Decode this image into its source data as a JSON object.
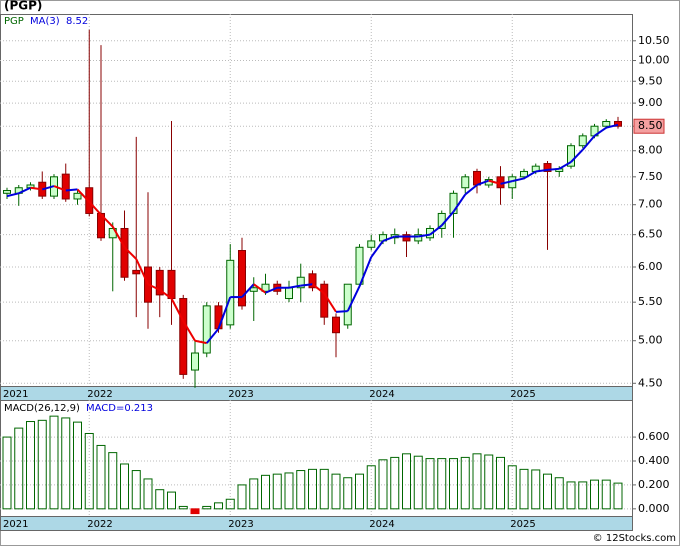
{
  "chart_data": [
    {
      "type": "candlestick",
      "title": "(PGP)",
      "symbol": "PGP",
      "categories": [
        "2021",
        null,
        null,
        null,
        null,
        null,
        null,
        "2022",
        null,
        null,
        null,
        null,
        null,
        null,
        null,
        null,
        null,
        null,
        null,
        "2023",
        null,
        null,
        null,
        null,
        null,
        null,
        null,
        null,
        null,
        null,
        null,
        "2024",
        null,
        null,
        null,
        null,
        null,
        null,
        null,
        null,
        null,
        null,
        null,
        "2025",
        null,
        null,
        null,
        null,
        null,
        null,
        null,
        null,
        null
      ],
      "open": [
        7.2,
        7.2,
        7.3,
        7.4,
        7.15,
        7.55,
        7.1,
        7.3,
        6.85,
        6.45,
        6.6,
        5.95,
        6.0,
        5.95,
        5.95,
        5.55,
        4.65,
        4.85,
        5.45,
        5.2,
        6.25,
        5.65,
        5.65,
        5.75,
        5.55,
        5.7,
        5.9,
        5.75,
        5.3,
        5.2,
        5.75,
        6.3,
        6.4,
        6.45,
        6.5,
        6.4,
        6.45,
        6.6,
        6.85,
        7.3,
        7.6,
        7.35,
        7.5,
        7.3,
        7.5,
        7.6,
        7.75,
        7.6,
        7.7,
        8.1,
        8.3,
        8.5,
        8.6
      ],
      "high": [
        7.3,
        7.35,
        7.4,
        7.6,
        7.55,
        7.75,
        7.25,
        10.79,
        10.39,
        6.7,
        6.9,
        8.28,
        7.22,
        6.0,
        8.61,
        5.6,
        5.0,
        5.5,
        5.5,
        6.35,
        6.45,
        5.85,
        5.9,
        5.8,
        5.8,
        6.05,
        5.95,
        5.8,
        5.35,
        5.75,
        6.35,
        6.5,
        6.55,
        6.6,
        6.55,
        6.6,
        6.65,
        6.9,
        7.25,
        7.55,
        7.65,
        7.5,
        7.7,
        7.55,
        7.65,
        7.75,
        7.8,
        7.7,
        8.15,
        8.35,
        8.55,
        8.65,
        8.7
      ],
      "low": [
        7.1,
        6.98,
        7.25,
        7.1,
        7.1,
        7.05,
        7.0,
        6.8,
        6.4,
        5.65,
        5.8,
        5.3,
        5.15,
        5.3,
        5.2,
        4.55,
        4.45,
        4.8,
        5.1,
        5.15,
        5.4,
        5.25,
        5.6,
        5.6,
        5.5,
        5.5,
        5.65,
        5.2,
        4.8,
        5.15,
        5.7,
        6.25,
        6.35,
        6.35,
        6.15,
        6.35,
        6.4,
        6.45,
        6.45,
        7.2,
        7.2,
        7.3,
        7.0,
        7.1,
        7.45,
        7.55,
        6.26,
        7.5,
        7.65,
        8.05,
        8.25,
        8.45,
        8.45
      ],
      "close": [
        7.25,
        7.3,
        7.35,
        7.15,
        7.5,
        7.1,
        7.2,
        6.85,
        6.45,
        6.6,
        5.85,
        5.9,
        5.5,
        5.6,
        5.55,
        4.6,
        4.85,
        5.45,
        5.15,
        6.1,
        5.45,
        5.7,
        5.75,
        5.65,
        5.7,
        5.85,
        5.7,
        5.3,
        5.1,
        5.75,
        6.3,
        6.4,
        6.5,
        6.5,
        6.4,
        6.5,
        6.6,
        6.85,
        7.2,
        7.5,
        7.35,
        7.45,
        7.3,
        7.5,
        7.6,
        7.7,
        7.6,
        7.65,
        8.1,
        8.3,
        8.5,
        8.6,
        8.5
      ],
      "up_color": "#ccffcc",
      "up_edge": "#006600",
      "down_color": "#e00000",
      "down_edge": "#880000",
      "ma": {
        "name": "MA(3)",
        "last": "8.52",
        "rise_color": "#0000dd",
        "fall_color": "#ee0000",
        "values": [
          7.15,
          7.2,
          7.3,
          7.27,
          7.33,
          7.25,
          7.27,
          7.05,
          6.83,
          6.63,
          6.3,
          6.12,
          5.75,
          5.67,
          5.55,
          5.25,
          5.0,
          4.97,
          5.15,
          5.57,
          5.57,
          5.75,
          5.63,
          5.7,
          5.7,
          5.73,
          5.75,
          5.62,
          5.37,
          5.38,
          5.72,
          6.15,
          6.4,
          6.47,
          6.47,
          6.47,
          6.5,
          6.65,
          6.88,
          7.18,
          7.35,
          7.43,
          7.37,
          7.42,
          7.47,
          7.6,
          7.63,
          7.65,
          7.78,
          8.02,
          8.3,
          8.47,
          8.53
        ]
      },
      "last_price": {
        "value": 8.5,
        "label": "8.50"
      },
      "log_scale": true,
      "grid": true,
      "ylim": [
        4.47,
        11.22
      ],
      "yticks": [
        {
          "value": 4.5,
          "label": "4.50"
        },
        {
          "value": 5,
          "label": "5.00"
        },
        {
          "value": 5.5,
          "label": "5.50"
        },
        {
          "value": 6,
          "label": "6.00"
        },
        {
          "value": 6.5,
          "label": "6.50"
        },
        {
          "value": 7,
          "label": "7.00"
        },
        {
          "value": 7.5,
          "label": "7.50"
        },
        {
          "value": 8,
          "label": "8.00"
        },
        {
          "value": 8.5,
          "label": "8.50"
        },
        {
          "value": 9,
          "label": "9.00"
        },
        {
          "value": 9.5,
          "label": "9.50"
        },
        {
          "value": 10,
          "label": "10.00"
        },
        {
          "value": 10.5,
          "label": "10.50"
        }
      ]
    },
    {
      "type": "bar",
      "title": "MACD(26,12,9)",
      "legend_text": "MACD=0.213",
      "values": [
        0.6,
        0.675,
        0.73,
        0.74,
        0.775,
        0.76,
        0.725,
        0.63,
        0.53,
        0.47,
        0.375,
        0.32,
        0.25,
        0.16,
        0.14,
        0.02,
        -0.04,
        0.02,
        0.05,
        0.08,
        0.2,
        0.25,
        0.28,
        0.29,
        0.3,
        0.32,
        0.33,
        0.33,
        0.29,
        0.26,
        0.29,
        0.36,
        0.41,
        0.43,
        0.46,
        0.44,
        0.42,
        0.42,
        0.42,
        0.43,
        0.46,
        0.45,
        0.43,
        0.36,
        0.33,
        0.325,
        0.29,
        0.26,
        0.225,
        0.225,
        0.24,
        0.24,
        0.215
      ],
      "color": "#006600",
      "negative_color": "#e00000",
      "grid": true,
      "ylim": [
        -0.06,
        0.91
      ],
      "yticks": [
        {
          "value": 0,
          "label": "0.000"
        },
        {
          "value": 0.2,
          "label": "0.200"
        },
        {
          "value": 0.4,
          "label": "0.400"
        },
        {
          "value": 0.6,
          "label": "0.600"
        }
      ]
    }
  ],
  "copyright": "© 12Stocks.com"
}
